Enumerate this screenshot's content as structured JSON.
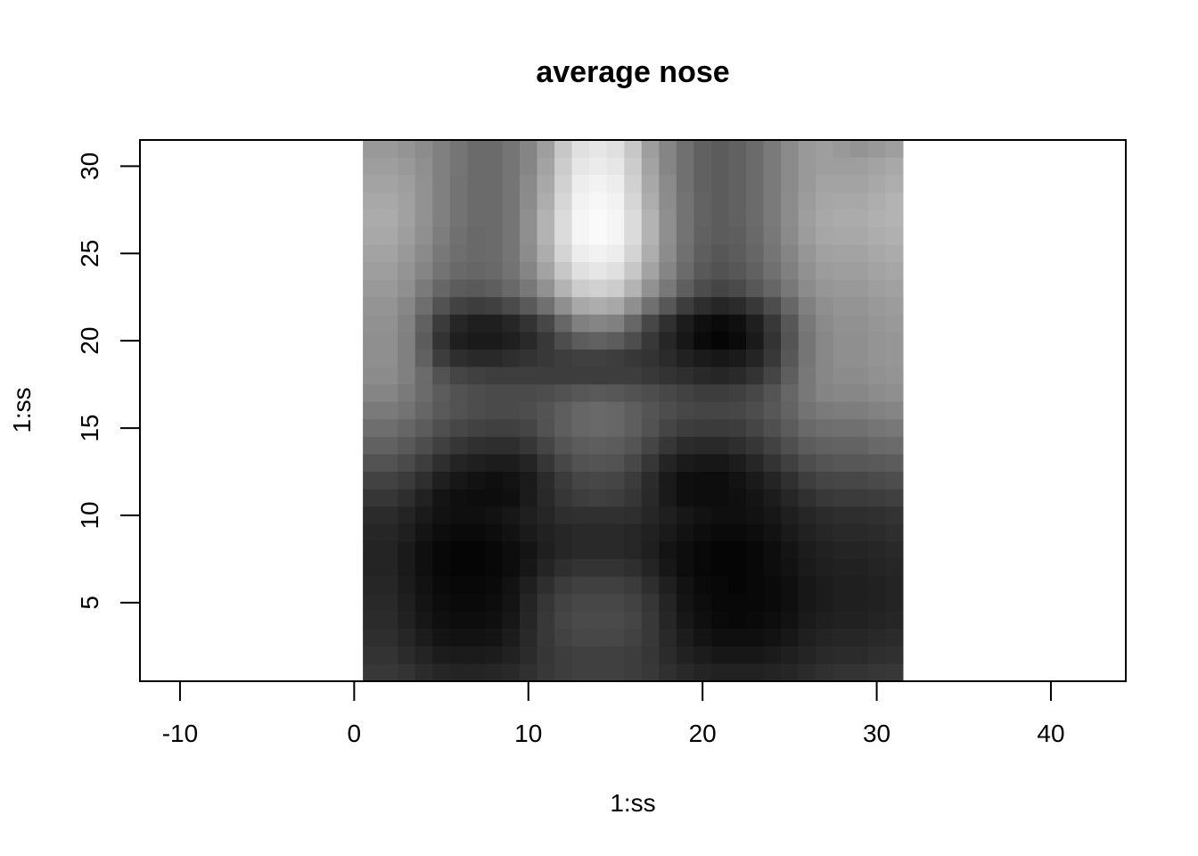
{
  "chart_data": {
    "type": "heatmap",
    "title": "average nose",
    "xlabel": "1:ss",
    "ylabel": "1:ss",
    "xlim": [
      -12.3,
      44.3
    ],
    "ylim": [
      0.5,
      31.5
    ],
    "x_ticks": [
      -10,
      0,
      10,
      20,
      30,
      40
    ],
    "y_ticks": [
      5,
      10,
      15,
      20,
      25,
      30
    ],
    "grid": false,
    "colormap": "grayscale",
    "color_low": "#000000",
    "color_high": "#ffffff",
    "rows": 31,
    "cols": 31,
    "value_range": [
      0,
      1
    ],
    "values_row_note_top_first": true,
    "values": [
      [
        0.6,
        0.6,
        0.58,
        0.55,
        0.5,
        0.46,
        0.42,
        0.42,
        0.46,
        0.52,
        0.62,
        0.78,
        0.88,
        0.9,
        0.88,
        0.78,
        0.62,
        0.52,
        0.44,
        0.38,
        0.36,
        0.38,
        0.42,
        0.48,
        0.54,
        0.6,
        0.62,
        0.6,
        0.58,
        0.6,
        0.62
      ],
      [
        0.62,
        0.62,
        0.6,
        0.56,
        0.5,
        0.46,
        0.42,
        0.42,
        0.46,
        0.52,
        0.64,
        0.8,
        0.9,
        0.92,
        0.9,
        0.8,
        0.64,
        0.52,
        0.44,
        0.38,
        0.36,
        0.38,
        0.42,
        0.48,
        0.54,
        0.6,
        0.62,
        0.62,
        0.62,
        0.64,
        0.66
      ],
      [
        0.64,
        0.64,
        0.62,
        0.57,
        0.5,
        0.45,
        0.42,
        0.42,
        0.46,
        0.54,
        0.66,
        0.82,
        0.93,
        0.95,
        0.93,
        0.82,
        0.66,
        0.54,
        0.44,
        0.38,
        0.36,
        0.38,
        0.42,
        0.48,
        0.54,
        0.6,
        0.64,
        0.64,
        0.64,
        0.66,
        0.68
      ],
      [
        0.66,
        0.66,
        0.63,
        0.57,
        0.5,
        0.45,
        0.42,
        0.42,
        0.46,
        0.55,
        0.68,
        0.84,
        0.95,
        0.97,
        0.95,
        0.84,
        0.68,
        0.55,
        0.45,
        0.39,
        0.36,
        0.38,
        0.42,
        0.48,
        0.55,
        0.61,
        0.65,
        0.66,
        0.66,
        0.68,
        0.7
      ],
      [
        0.67,
        0.67,
        0.63,
        0.57,
        0.5,
        0.45,
        0.42,
        0.42,
        0.46,
        0.56,
        0.7,
        0.86,
        0.96,
        0.98,
        0.96,
        0.86,
        0.7,
        0.56,
        0.45,
        0.39,
        0.36,
        0.38,
        0.42,
        0.48,
        0.55,
        0.62,
        0.66,
        0.67,
        0.67,
        0.69,
        0.7
      ],
      [
        0.66,
        0.66,
        0.62,
        0.56,
        0.49,
        0.44,
        0.41,
        0.42,
        0.46,
        0.56,
        0.7,
        0.86,
        0.96,
        0.98,
        0.96,
        0.86,
        0.7,
        0.56,
        0.45,
        0.38,
        0.36,
        0.37,
        0.41,
        0.47,
        0.54,
        0.61,
        0.65,
        0.66,
        0.66,
        0.68,
        0.69
      ],
      [
        0.64,
        0.64,
        0.6,
        0.54,
        0.47,
        0.43,
        0.41,
        0.42,
        0.46,
        0.55,
        0.68,
        0.83,
        0.93,
        0.95,
        0.93,
        0.83,
        0.68,
        0.55,
        0.44,
        0.37,
        0.34,
        0.36,
        0.4,
        0.46,
        0.52,
        0.59,
        0.63,
        0.64,
        0.64,
        0.66,
        0.67
      ],
      [
        0.62,
        0.62,
        0.58,
        0.52,
        0.45,
        0.41,
        0.4,
        0.41,
        0.45,
        0.52,
        0.64,
        0.78,
        0.88,
        0.9,
        0.88,
        0.78,
        0.64,
        0.52,
        0.42,
        0.35,
        0.32,
        0.34,
        0.38,
        0.44,
        0.5,
        0.57,
        0.61,
        0.62,
        0.62,
        0.64,
        0.65
      ],
      [
        0.6,
        0.6,
        0.56,
        0.48,
        0.4,
        0.36,
        0.35,
        0.37,
        0.41,
        0.47,
        0.57,
        0.7,
        0.8,
        0.82,
        0.8,
        0.7,
        0.57,
        0.47,
        0.37,
        0.3,
        0.27,
        0.29,
        0.34,
        0.4,
        0.47,
        0.55,
        0.59,
        0.6,
        0.6,
        0.62,
        0.63
      ],
      [
        0.58,
        0.58,
        0.53,
        0.43,
        0.32,
        0.26,
        0.24,
        0.25,
        0.29,
        0.35,
        0.44,
        0.56,
        0.66,
        0.68,
        0.66,
        0.56,
        0.44,
        0.34,
        0.24,
        0.18,
        0.15,
        0.17,
        0.22,
        0.3,
        0.4,
        0.5,
        0.56,
        0.58,
        0.58,
        0.6,
        0.61
      ],
      [
        0.57,
        0.57,
        0.51,
        0.38,
        0.23,
        0.15,
        0.12,
        0.12,
        0.15,
        0.2,
        0.28,
        0.4,
        0.5,
        0.52,
        0.5,
        0.4,
        0.28,
        0.19,
        0.11,
        0.06,
        0.04,
        0.06,
        0.12,
        0.22,
        0.34,
        0.47,
        0.54,
        0.57,
        0.57,
        0.59,
        0.6
      ],
      [
        0.56,
        0.56,
        0.5,
        0.36,
        0.2,
        0.12,
        0.1,
        0.1,
        0.12,
        0.16,
        0.22,
        0.3,
        0.36,
        0.38,
        0.36,
        0.3,
        0.22,
        0.15,
        0.09,
        0.04,
        0.02,
        0.04,
        0.1,
        0.2,
        0.33,
        0.46,
        0.53,
        0.56,
        0.56,
        0.58,
        0.59
      ],
      [
        0.56,
        0.56,
        0.5,
        0.38,
        0.24,
        0.18,
        0.16,
        0.16,
        0.18,
        0.2,
        0.22,
        0.24,
        0.25,
        0.25,
        0.24,
        0.22,
        0.2,
        0.17,
        0.13,
        0.1,
        0.09,
        0.1,
        0.14,
        0.22,
        0.34,
        0.46,
        0.53,
        0.56,
        0.56,
        0.58,
        0.59
      ],
      [
        0.55,
        0.55,
        0.5,
        0.42,
        0.32,
        0.27,
        0.25,
        0.24,
        0.24,
        0.24,
        0.24,
        0.24,
        0.24,
        0.24,
        0.24,
        0.24,
        0.22,
        0.2,
        0.18,
        0.16,
        0.15,
        0.16,
        0.2,
        0.27,
        0.37,
        0.47,
        0.53,
        0.55,
        0.55,
        0.57,
        0.58
      ],
      [
        0.52,
        0.52,
        0.48,
        0.42,
        0.36,
        0.32,
        0.3,
        0.29,
        0.29,
        0.29,
        0.3,
        0.32,
        0.34,
        0.35,
        0.34,
        0.32,
        0.3,
        0.28,
        0.26,
        0.24,
        0.24,
        0.25,
        0.28,
        0.33,
        0.4,
        0.47,
        0.52,
        0.53,
        0.53,
        0.55,
        0.56
      ],
      [
        0.48,
        0.48,
        0.45,
        0.4,
        0.35,
        0.32,
        0.3,
        0.29,
        0.29,
        0.3,
        0.33,
        0.37,
        0.4,
        0.41,
        0.4,
        0.37,
        0.33,
        0.3,
        0.28,
        0.27,
        0.27,
        0.28,
        0.3,
        0.34,
        0.39,
        0.45,
        0.48,
        0.49,
        0.49,
        0.51,
        0.52
      ],
      [
        0.43,
        0.43,
        0.4,
        0.36,
        0.31,
        0.28,
        0.26,
        0.25,
        0.25,
        0.27,
        0.32,
        0.37,
        0.4,
        0.41,
        0.4,
        0.37,
        0.32,
        0.27,
        0.24,
        0.23,
        0.23,
        0.24,
        0.27,
        0.31,
        0.36,
        0.41,
        0.43,
        0.44,
        0.44,
        0.46,
        0.47
      ],
      [
        0.38,
        0.38,
        0.35,
        0.3,
        0.25,
        0.21,
        0.19,
        0.18,
        0.18,
        0.21,
        0.27,
        0.33,
        0.36,
        0.37,
        0.36,
        0.33,
        0.27,
        0.21,
        0.17,
        0.16,
        0.16,
        0.18,
        0.21,
        0.26,
        0.31,
        0.36,
        0.38,
        0.39,
        0.39,
        0.41,
        0.42
      ],
      [
        0.32,
        0.32,
        0.29,
        0.24,
        0.18,
        0.14,
        0.12,
        0.11,
        0.11,
        0.14,
        0.21,
        0.28,
        0.32,
        0.33,
        0.32,
        0.28,
        0.21,
        0.14,
        0.1,
        0.09,
        0.09,
        0.11,
        0.15,
        0.2,
        0.25,
        0.3,
        0.33,
        0.34,
        0.34,
        0.35,
        0.36
      ],
      [
        0.26,
        0.26,
        0.23,
        0.18,
        0.12,
        0.09,
        0.07,
        0.06,
        0.07,
        0.1,
        0.17,
        0.23,
        0.27,
        0.28,
        0.27,
        0.23,
        0.17,
        0.1,
        0.06,
        0.05,
        0.05,
        0.07,
        0.1,
        0.14,
        0.19,
        0.24,
        0.27,
        0.28,
        0.28,
        0.29,
        0.3
      ],
      [
        0.21,
        0.21,
        0.18,
        0.13,
        0.08,
        0.06,
        0.05,
        0.05,
        0.06,
        0.1,
        0.16,
        0.21,
        0.24,
        0.25,
        0.24,
        0.21,
        0.16,
        0.1,
        0.06,
        0.05,
        0.05,
        0.06,
        0.08,
        0.11,
        0.15,
        0.19,
        0.22,
        0.23,
        0.23,
        0.24,
        0.25
      ],
      [
        0.17,
        0.17,
        0.14,
        0.1,
        0.07,
        0.06,
        0.06,
        0.07,
        0.09,
        0.12,
        0.15,
        0.18,
        0.19,
        0.19,
        0.19,
        0.18,
        0.15,
        0.12,
        0.09,
        0.07,
        0.06,
        0.06,
        0.07,
        0.09,
        0.12,
        0.15,
        0.17,
        0.18,
        0.18,
        0.19,
        0.2
      ],
      [
        0.15,
        0.15,
        0.12,
        0.08,
        0.05,
        0.04,
        0.04,
        0.05,
        0.07,
        0.1,
        0.13,
        0.15,
        0.16,
        0.16,
        0.16,
        0.15,
        0.13,
        0.1,
        0.07,
        0.05,
        0.04,
        0.04,
        0.05,
        0.07,
        0.1,
        0.13,
        0.15,
        0.16,
        0.16,
        0.17,
        0.18
      ],
      [
        0.14,
        0.14,
        0.1,
        0.06,
        0.03,
        0.02,
        0.02,
        0.03,
        0.05,
        0.08,
        0.12,
        0.15,
        0.16,
        0.16,
        0.16,
        0.15,
        0.12,
        0.08,
        0.05,
        0.03,
        0.02,
        0.02,
        0.03,
        0.05,
        0.08,
        0.11,
        0.13,
        0.14,
        0.14,
        0.15,
        0.16
      ],
      [
        0.14,
        0.14,
        0.1,
        0.06,
        0.03,
        0.02,
        0.02,
        0.03,
        0.05,
        0.09,
        0.14,
        0.18,
        0.2,
        0.2,
        0.2,
        0.18,
        0.14,
        0.09,
        0.05,
        0.03,
        0.02,
        0.02,
        0.03,
        0.05,
        0.07,
        0.1,
        0.12,
        0.13,
        0.13,
        0.14,
        0.15
      ],
      [
        0.15,
        0.15,
        0.11,
        0.07,
        0.04,
        0.03,
        0.03,
        0.04,
        0.07,
        0.12,
        0.18,
        0.23,
        0.25,
        0.25,
        0.25,
        0.23,
        0.18,
        0.12,
        0.07,
        0.04,
        0.03,
        0.02,
        0.03,
        0.04,
        0.06,
        0.09,
        0.11,
        0.12,
        0.12,
        0.13,
        0.14
      ],
      [
        0.16,
        0.16,
        0.12,
        0.08,
        0.05,
        0.04,
        0.04,
        0.05,
        0.08,
        0.14,
        0.21,
        0.26,
        0.28,
        0.28,
        0.28,
        0.26,
        0.21,
        0.14,
        0.08,
        0.05,
        0.03,
        0.03,
        0.03,
        0.04,
        0.06,
        0.09,
        0.11,
        0.12,
        0.12,
        0.13,
        0.14
      ],
      [
        0.17,
        0.17,
        0.13,
        0.09,
        0.06,
        0.05,
        0.05,
        0.06,
        0.09,
        0.15,
        0.22,
        0.27,
        0.29,
        0.29,
        0.29,
        0.27,
        0.22,
        0.15,
        0.09,
        0.06,
        0.04,
        0.03,
        0.04,
        0.05,
        0.07,
        0.1,
        0.12,
        0.13,
        0.13,
        0.14,
        0.15
      ],
      [
        0.18,
        0.18,
        0.15,
        0.11,
        0.08,
        0.07,
        0.07,
        0.08,
        0.11,
        0.16,
        0.22,
        0.26,
        0.28,
        0.28,
        0.28,
        0.26,
        0.22,
        0.16,
        0.11,
        0.08,
        0.06,
        0.06,
        0.06,
        0.07,
        0.09,
        0.12,
        0.14,
        0.15,
        0.15,
        0.16,
        0.17
      ],
      [
        0.2,
        0.2,
        0.17,
        0.14,
        0.11,
        0.1,
        0.1,
        0.11,
        0.13,
        0.17,
        0.21,
        0.24,
        0.25,
        0.25,
        0.25,
        0.24,
        0.21,
        0.17,
        0.13,
        0.11,
        0.09,
        0.09,
        0.09,
        0.1,
        0.12,
        0.14,
        0.16,
        0.17,
        0.17,
        0.18,
        0.19
      ],
      [
        0.22,
        0.22,
        0.2,
        0.17,
        0.15,
        0.14,
        0.14,
        0.15,
        0.16,
        0.19,
        0.22,
        0.24,
        0.25,
        0.25,
        0.25,
        0.24,
        0.22,
        0.19,
        0.16,
        0.14,
        0.13,
        0.13,
        0.13,
        0.14,
        0.15,
        0.17,
        0.19,
        0.2,
        0.2,
        0.21,
        0.22
      ]
    ]
  }
}
